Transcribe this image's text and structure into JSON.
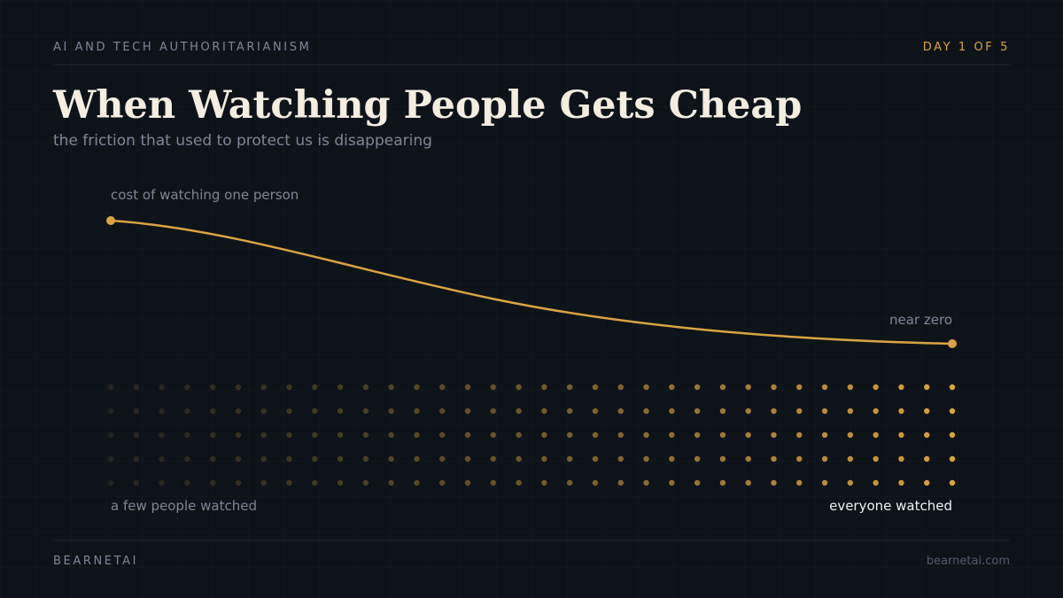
{
  "header": {
    "series_label": "AI AND TECH AUTHORITARIANISM",
    "day_label": "DAY 1 OF 5"
  },
  "title": "When Watching People Gets Cheap",
  "subtitle": "the friction that used to protect us is disappearing",
  "curve": {
    "start_label": "cost of watching one person",
    "end_label": "near zero"
  },
  "dots": {
    "left_label": "a few people watched",
    "right_label": "everyone watched"
  },
  "footer": {
    "brand": "BEARNETAI",
    "url": "bearnetai.com"
  }
}
